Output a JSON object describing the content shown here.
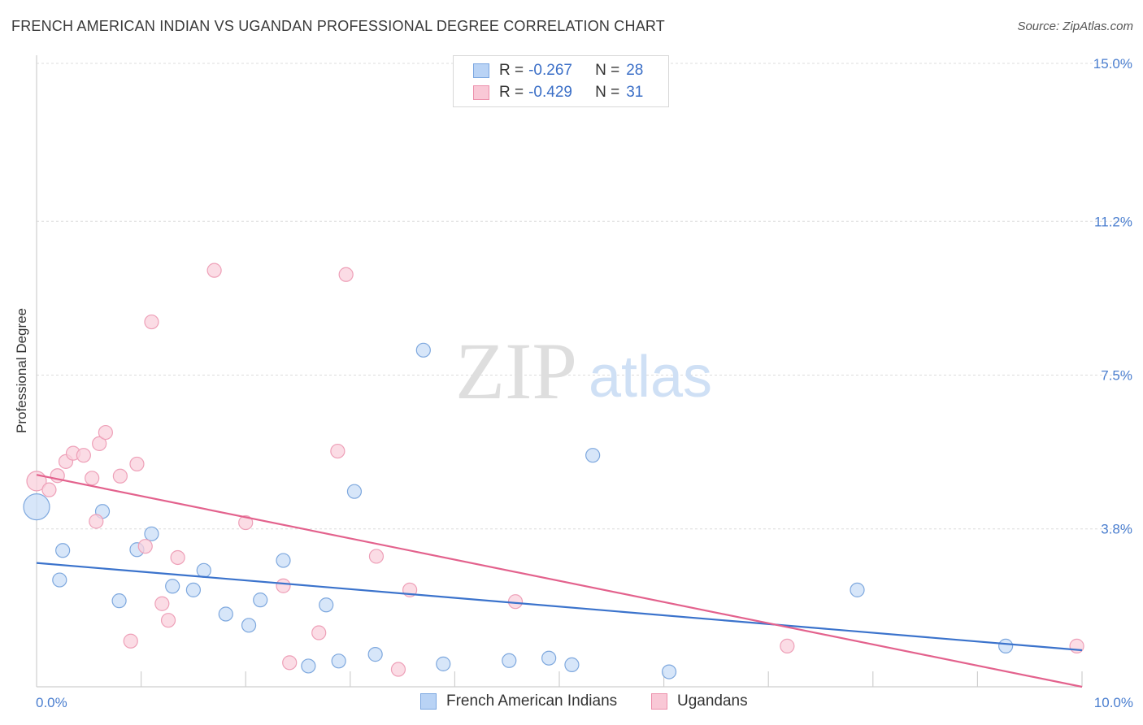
{
  "title": "FRENCH AMERICAN INDIAN VS UGANDAN PROFESSIONAL DEGREE CORRELATION CHART",
  "source": "Source: ZipAtlas.com",
  "watermark": {
    "zip": "ZIP",
    "atlas": "atlas"
  },
  "legend": {
    "r_label": "R =",
    "n_label": "N =",
    "rows": [
      {
        "r": "-0.267",
        "n": "28",
        "fill": "#b9d3f5",
        "stroke": "#7aa6e0"
      },
      {
        "r": "-0.429",
        "n": "31",
        "fill": "#f9c8d6",
        "stroke": "#ec8fab"
      }
    ]
  },
  "bottom_legend": [
    {
      "label": "French American Indians"
    },
    {
      "label": "Ugandans"
    }
  ],
  "chart_data": {
    "type": "scatter",
    "xlabel": "",
    "ylabel": "Professional Degree",
    "xlim": [
      0,
      10
    ],
    "ylim": [
      0,
      15
    ],
    "y_ticks": [
      {
        "value": 3.8,
        "label": "3.8%"
      },
      {
        "value": 7.5,
        "label": "7.5%"
      },
      {
        "value": 11.2,
        "label": "11.2%"
      },
      {
        "value": 15.0,
        "label": "15.0%"
      }
    ],
    "x_tick_labels": [
      {
        "value": 0,
        "label": "0.0%"
      },
      {
        "value": 10,
        "label": "10.0%"
      }
    ],
    "grid": true,
    "series": [
      {
        "name": "French American Indians",
        "color": "#3b73cc",
        "marker_fill": "#c9ddf7",
        "marker_stroke": "#7ea8de",
        "trend": {
          "x0": 0,
          "y0": 2.98,
          "x1": 10,
          "y1": 0.88
        },
        "points": [
          [
            0.0,
            4.33,
            3
          ],
          [
            0.25,
            3.28,
            1
          ],
          [
            0.22,
            2.57,
            1
          ],
          [
            0.63,
            4.22,
            1
          ],
          [
            0.79,
            2.07,
            1
          ],
          [
            0.96,
            3.3,
            1
          ],
          [
            1.1,
            3.68,
            1
          ],
          [
            1.3,
            2.42,
            1
          ],
          [
            1.5,
            2.33,
            1
          ],
          [
            1.6,
            2.8,
            1
          ],
          [
            1.81,
            1.75,
            1
          ],
          [
            2.03,
            1.48,
            1
          ],
          [
            2.14,
            2.09,
            1
          ],
          [
            2.36,
            3.04,
            1
          ],
          [
            2.6,
            0.5,
            1
          ],
          [
            2.77,
            1.97,
            1
          ],
          [
            2.89,
            0.62,
            1
          ],
          [
            3.04,
            4.7,
            1
          ],
          [
            3.24,
            0.78,
            1
          ],
          [
            3.7,
            8.1,
            1
          ],
          [
            3.89,
            0.55,
            1
          ],
          [
            4.52,
            0.63,
            1
          ],
          [
            4.9,
            0.69,
            1
          ],
          [
            5.12,
            0.53,
            1
          ],
          [
            5.32,
            5.57,
            1
          ],
          [
            6.05,
            0.36,
            1
          ],
          [
            7.85,
            2.33,
            1
          ],
          [
            9.27,
            0.98,
            1
          ]
        ]
      },
      {
        "name": "Ugandans",
        "color": "#e3628d",
        "marker_fill": "#f9d0dc",
        "marker_stroke": "#eea0b8",
        "trend": {
          "x0": 0,
          "y0": 5.1,
          "x1": 10,
          "y1": 0.0
        },
        "points": [
          [
            0.0,
            4.95,
            2
          ],
          [
            0.12,
            4.74,
            1
          ],
          [
            0.2,
            5.08,
            1
          ],
          [
            0.28,
            5.42,
            1
          ],
          [
            0.35,
            5.62,
            1
          ],
          [
            0.45,
            5.57,
            1
          ],
          [
            0.53,
            5.02,
            1
          ],
          [
            0.57,
            3.98,
            1
          ],
          [
            0.6,
            5.85,
            1
          ],
          [
            0.66,
            6.12,
            1
          ],
          [
            0.8,
            5.07,
            1
          ],
          [
            0.9,
            1.1,
            1
          ],
          [
            0.96,
            5.36,
            1
          ],
          [
            1.04,
            3.38,
            1
          ],
          [
            1.1,
            8.78,
            1
          ],
          [
            1.2,
            2.0,
            1
          ],
          [
            1.26,
            1.6,
            1
          ],
          [
            1.35,
            3.11,
            1
          ],
          [
            1.7,
            10.02,
            1
          ],
          [
            2.0,
            3.95,
            1
          ],
          [
            2.36,
            2.43,
            1
          ],
          [
            2.42,
            0.58,
            1
          ],
          [
            2.7,
            1.3,
            1
          ],
          [
            2.88,
            5.67,
            1
          ],
          [
            2.96,
            9.92,
            1
          ],
          [
            3.25,
            3.14,
            1
          ],
          [
            3.46,
            0.42,
            1
          ],
          [
            3.57,
            2.33,
            1
          ],
          [
            4.58,
            2.05,
            1
          ],
          [
            7.18,
            0.98,
            1
          ],
          [
            9.95,
            0.98,
            1
          ]
        ]
      }
    ]
  }
}
